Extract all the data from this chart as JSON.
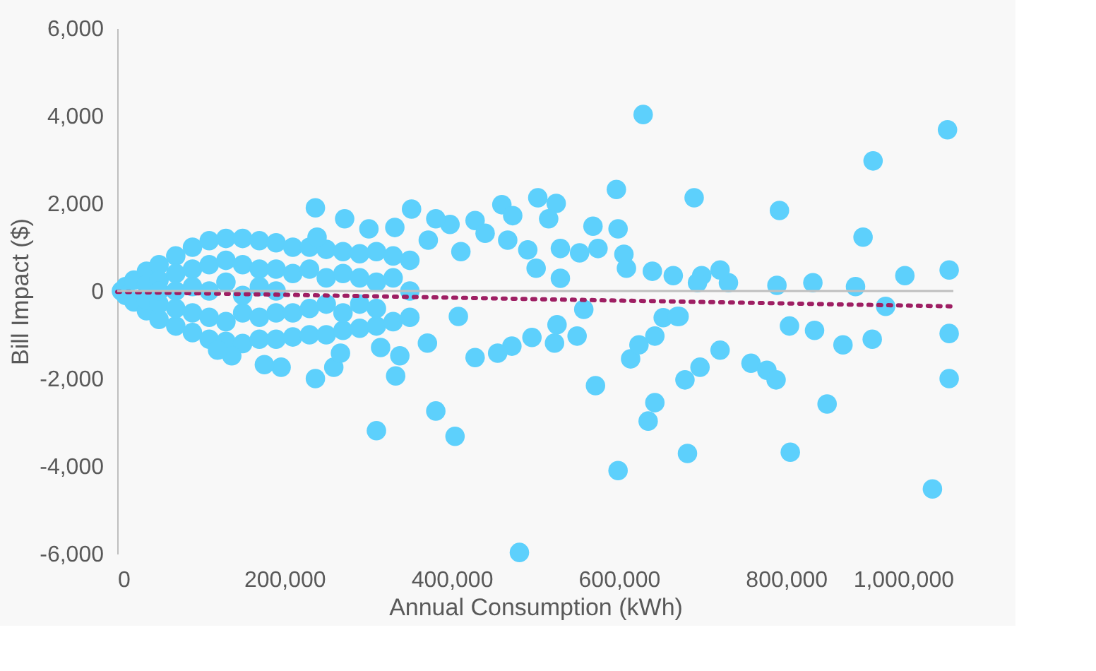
{
  "chart_data": {
    "type": "scatter",
    "xlabel": "Annual Consumption (kWh)",
    "ylabel": "Bill Impact ($)",
    "xlim": [
      0,
      1000000
    ],
    "ylim": [
      -6000,
      6000
    ],
    "xticks": [
      0,
      {
        "value": 200000,
        "label": "200,000"
      },
      {
        "value": 400000,
        "label": "400,000"
      },
      {
        "value": 600000,
        "label": "600,000"
      },
      {
        "value": 800000,
        "label": "800,000"
      },
      {
        "value": 1000000,
        "label": "1,000,000"
      }
    ],
    "yticks": [
      {
        "value": -6000,
        "label": "-6,000"
      },
      {
        "value": -4000,
        "label": "-4,000"
      },
      {
        "value": -2000,
        "label": "-2,000"
      },
      0,
      {
        "value": 2000,
        "label": "2,000"
      },
      {
        "value": 4000,
        "label": "4,000"
      },
      {
        "value": 6000,
        "label": "6,000"
      }
    ],
    "grid": false,
    "ref_lines": [
      {
        "axis": "y",
        "value": 0,
        "color": "#bfbfbf"
      }
    ],
    "series": [
      {
        "color": "#5dd0fc",
        "marker": "circle",
        "x": [
          5000,
          10000,
          10000,
          20000,
          20000,
          35000,
          35000,
          35000,
          35000,
          50000,
          50000,
          50000,
          50000,
          50000,
          70000,
          70000,
          70000,
          70000,
          70000,
          90000,
          90000,
          90000,
          90000,
          90000,
          110000,
          110000,
          110000,
          110000,
          110000,
          130000,
          130000,
          130000,
          130000,
          130000,
          150000,
          150000,
          150000,
          150000,
          150000,
          170000,
          170000,
          170000,
          170000,
          170000,
          190000,
          190000,
          190000,
          190000,
          190000,
          210000,
          210000,
          210000,
          210000,
          230000,
          230000,
          230000,
          230000,
          250000,
          250000,
          250000,
          250000,
          270000,
          270000,
          270000,
          270000,
          290000,
          290000,
          290000,
          290000,
          310000,
          310000,
          310000,
          310000,
          330000,
          330000,
          330000,
          350000,
          350000,
          350000,
          629000,
          993000,
          904000,
          237000,
          597000,
          525000,
          690000,
          503000,
          460000,
          473000,
          516000,
          428000,
          569000,
          599000,
          792000,
          892000,
          942000,
          995000,
          995000,
          995000,
          975000,
          805000,
          849000,
          682000,
          679000,
          697000,
          721000,
          758000,
          777000,
          788000,
          804000,
          834000,
          868000,
          903000,
          919000,
          883000,
          832000,
          789000,
          731000,
          721000,
          699000,
          672000,
          381000,
          404000,
          481000,
          599000,
          635000,
          643000,
          572000,
          614000,
          624000,
          643000,
          550000,
          523000,
          526000,
          496000,
          472000,
          455000,
          428000,
          371000,
          408000,
          558000,
          653000,
          670000,
          665000,
          640000,
          606000,
          575000,
          553000,
          530000,
          491000,
          467000,
          440000,
          411000,
          398000,
          381000,
          501000,
          530000,
          609000,
          694000,
          272000,
          239000,
          352000,
          301000,
          332000,
          372000,
          237000,
          333000,
          310000,
          196000,
          259000,
          267000,
          176000,
          137000,
          120000,
          338000,
          315000
        ],
        "values": [
          0,
          100,
          -100,
          250,
          -250,
          450,
          -450,
          150,
          -200,
          600,
          -650,
          250,
          -300,
          0,
          800,
          -800,
          400,
          -400,
          0,
          1000,
          -950,
          500,
          -500,
          100,
          1150,
          -1100,
          600,
          -600,
          0,
          1200,
          -1150,
          700,
          -700,
          200,
          1200,
          -1200,
          600,
          -500,
          -100,
          1150,
          -1100,
          500,
          -600,
          100,
          1100,
          -1100,
          500,
          -500,
          0,
          1000,
          -1050,
          400,
          -500,
          1000,
          -1000,
          500,
          -400,
          950,
          -1000,
          300,
          -300,
          900,
          -900,
          400,
          -500,
          850,
          -850,
          300,
          -300,
          900,
          -800,
          200,
          -400,
          800,
          -700,
          300,
          700,
          -600,
          0,
          4030,
          3680,
          2970,
          1900,
          2320,
          2000,
          2130,
          2130,
          1970,
          1720,
          1650,
          1610,
          1480,
          1420,
          1840,
          1230,
          350,
          480,
          -970,
          -2000,
          -4520,
          -3680,
          -2580,
          -3710,
          -2030,
          -1740,
          -1350,
          -1650,
          -1810,
          -2030,
          -800,
          -900,
          -1230,
          -1100,
          -350,
          100,
          190,
          130,
          190,
          480,
          350,
          -580,
          -2740,
          -3320,
          -5970,
          -4100,
          -2970,
          -2550,
          -2160,
          -1550,
          -1230,
          -1030,
          -1030,
          -1190,
          -770,
          -1060,
          -1260,
          -1420,
          -1520,
          -1190,
          -580,
          -420,
          -610,
          -580,
          350,
          450,
          840,
          970,
          870,
          970,
          940,
          1160,
          1320,
          900,
          1520,
          1650,
          520,
          290,
          520,
          190,
          1650,
          1230,
          1870,
          1420,
          1450,
          1160,
          -2000,
          -1940,
          -3190,
          -1740,
          -1740,
          -1420,
          -1680,
          -1480,
          -1350,
          -1480,
          -1290
        ]
      },
      {
        "type": "line",
        "color": "#9e1f63",
        "line_style": "dotted",
        "marker": "none",
        "x": [
          0,
          1000000
        ],
        "values": [
          -20,
          -350
        ]
      }
    ]
  }
}
